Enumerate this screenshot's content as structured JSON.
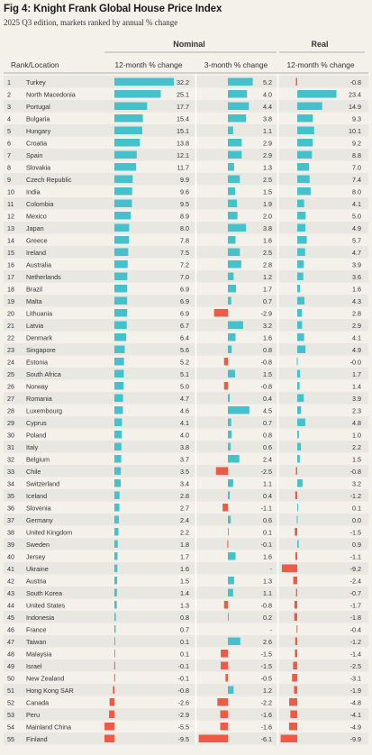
{
  "title": "Fig 4: Knight Frank Global House Price Index",
  "subtitle": "2025 Q3 edition, markets ranked by annual % change",
  "chart_data": {
    "type": "table",
    "title": "Fig 4: Knight Frank Global House Price Index",
    "subtitle": "2025 Q3 edition, markets ranked by annual % change",
    "group_headers": [
      "Nominal",
      "Real"
    ],
    "column_headers": [
      "Rank/Location",
      "12-month % change",
      "3-month % change",
      "12-month % change"
    ],
    "colors": {
      "positive": "#45c1cc",
      "negative": "#ee5a45",
      "background": "#f4f1eb",
      "stripe": "#e9e7e1"
    },
    "series": [
      {
        "name": "Nominal 12-month % change",
        "key": "nominal_12m"
      },
      {
        "name": "Nominal 3-month % change",
        "key": "nominal_3m"
      },
      {
        "name": "Real 12-month % change",
        "key": "real_12m"
      }
    ],
    "rows": [
      {
        "rank": "1",
        "location": "Turkey",
        "nominal_12m": "32.2",
        "nominal_3m": "5.2",
        "real_12m": "-0.8"
      },
      {
        "rank": "2",
        "location": "North Macedonia",
        "nominal_12m": "25.1",
        "nominal_3m": "4.0",
        "real_12m": "23.4"
      },
      {
        "rank": "3",
        "location": "Portugal",
        "nominal_12m": "17.7",
        "nominal_3m": "4.4",
        "real_12m": "14.9"
      },
      {
        "rank": "4",
        "location": "Bulgaria",
        "nominal_12m": "15.4",
        "nominal_3m": "3.8",
        "real_12m": "9.3"
      },
      {
        "rank": "5",
        "location": "Hungary",
        "nominal_12m": "15.1",
        "nominal_3m": "1.1",
        "real_12m": "10.1"
      },
      {
        "rank": "6",
        "location": "Croatia",
        "nominal_12m": "13.8",
        "nominal_3m": "2.9",
        "real_12m": "9.2"
      },
      {
        "rank": "7",
        "location": "Spain",
        "nominal_12m": "12.1",
        "nominal_3m": "2.9",
        "real_12m": "8.8"
      },
      {
        "rank": "8",
        "location": "Slovakia",
        "nominal_12m": "11.7",
        "nominal_3m": "1.3",
        "real_12m": "7.0"
      },
      {
        "rank": "9",
        "location": "Czech Republic",
        "nominal_12m": "9.9",
        "nominal_3m": "2.5",
        "real_12m": "7.4"
      },
      {
        "rank": "10",
        "location": "India",
        "nominal_12m": "9.6",
        "nominal_3m": "1.5",
        "real_12m": "8.0"
      },
      {
        "rank": "11",
        "location": "Colombia",
        "nominal_12m": "9.5",
        "nominal_3m": "1.9",
        "real_12m": "4.1"
      },
      {
        "rank": "12",
        "location": "Mexico",
        "nominal_12m": "8.9",
        "nominal_3m": "2.0",
        "real_12m": "5.0"
      },
      {
        "rank": "13",
        "location": "Japan",
        "nominal_12m": "8.0",
        "nominal_3m": "3.8",
        "real_12m": "4.9"
      },
      {
        "rank": "14",
        "location": "Greece",
        "nominal_12m": "7.8",
        "nominal_3m": "1.6",
        "real_12m": "5.7"
      },
      {
        "rank": "15",
        "location": "Ireland",
        "nominal_12m": "7.5",
        "nominal_3m": "2.5",
        "real_12m": "4.7"
      },
      {
        "rank": "16",
        "location": "Australia",
        "nominal_12m": "7.2",
        "nominal_3m": "2.8",
        "real_12m": "3.9"
      },
      {
        "rank": "17",
        "location": "Netherlands",
        "nominal_12m": "7.0",
        "nominal_3m": "1.2",
        "real_12m": "3.6"
      },
      {
        "rank": "18",
        "location": "Brazil",
        "nominal_12m": "6.9",
        "nominal_3m": "1.7",
        "real_12m": "1.6"
      },
      {
        "rank": "19",
        "location": "Malta",
        "nominal_12m": "6.9",
        "nominal_3m": "0.7",
        "real_12m": "4.3"
      },
      {
        "rank": "20",
        "location": "Lithuania",
        "nominal_12m": "6.9",
        "nominal_3m": "-2.9",
        "real_12m": "2.8"
      },
      {
        "rank": "21",
        "location": "Latvia",
        "nominal_12m": "6.7",
        "nominal_3m": "3.2",
        "real_12m": "2.9"
      },
      {
        "rank": "22",
        "location": "Denmark",
        "nominal_12m": "6.4",
        "nominal_3m": "1.6",
        "real_12m": "4.1"
      },
      {
        "rank": "23",
        "location": "Singapore",
        "nominal_12m": "5.6",
        "nominal_3m": "0.8",
        "real_12m": "4.9"
      },
      {
        "rank": "24",
        "location": "Estonia",
        "nominal_12m": "5.2",
        "nominal_3m": "-0.8",
        "real_12m": "-0.0"
      },
      {
        "rank": "25",
        "location": "South Africa",
        "nominal_12m": "5.1",
        "nominal_3m": "1.5",
        "real_12m": "1.7"
      },
      {
        "rank": "26",
        "location": "Norway",
        "nominal_12m": "5.0",
        "nominal_3m": "-0.8",
        "real_12m": "1.4"
      },
      {
        "rank": "27",
        "location": "Romania",
        "nominal_12m": "4.7",
        "nominal_3m": "0.4",
        "real_12m": "3.9"
      },
      {
        "rank": "28",
        "location": "Luxembourg",
        "nominal_12m": "4.6",
        "nominal_3m": "4.5",
        "real_12m": "2.3"
      },
      {
        "rank": "29",
        "location": "Cyprus",
        "nominal_12m": "4.1",
        "nominal_3m": "0.7",
        "real_12m": "4.8"
      },
      {
        "rank": "30",
        "location": "Poland",
        "nominal_12m": "4.0",
        "nominal_3m": "0.8",
        "real_12m": "1.0"
      },
      {
        "rank": "31",
        "location": "Italy",
        "nominal_12m": "3.8",
        "nominal_3m": "0.6",
        "real_12m": "2.2"
      },
      {
        "rank": "32",
        "location": "Belgium",
        "nominal_12m": "3.7",
        "nominal_3m": "2.4",
        "real_12m": "1.5"
      },
      {
        "rank": "33",
        "location": "Chile",
        "nominal_12m": "3.5",
        "nominal_3m": "-2.5",
        "real_12m": "-0.8"
      },
      {
        "rank": "34",
        "location": "Switzerland",
        "nominal_12m": "3.4",
        "nominal_3m": "1.1",
        "real_12m": "3.2"
      },
      {
        "rank": "35",
        "location": "Iceland",
        "nominal_12m": "2.8",
        "nominal_3m": "0.4",
        "real_12m": "-1.2"
      },
      {
        "rank": "36",
        "location": "Slovenia",
        "nominal_12m": "2.7",
        "nominal_3m": "-1.1",
        "real_12m": "0.1"
      },
      {
        "rank": "37",
        "location": "Germany",
        "nominal_12m": "2.4",
        "nominal_3m": "0.6",
        "real_12m": "0.0"
      },
      {
        "rank": "38",
        "location": "United Kingdom",
        "nominal_12m": "2.2",
        "nominal_3m": "0.1",
        "real_12m": "-1.5"
      },
      {
        "rank": "39",
        "location": "Sweden",
        "nominal_12m": "1.8",
        "nominal_3m": "-0.1",
        "real_12m": "0.9"
      },
      {
        "rank": "40",
        "location": "Jersey",
        "nominal_12m": "1.7",
        "nominal_3m": "1.6",
        "real_12m": "-1.1"
      },
      {
        "rank": "41",
        "location": "Ukraine",
        "nominal_12m": "1.6",
        "nominal_3m": "-",
        "real_12m": "-9.2"
      },
      {
        "rank": "42",
        "location": "Austria",
        "nominal_12m": "1.5",
        "nominal_3m": "1.3",
        "real_12m": "-2.4"
      },
      {
        "rank": "43",
        "location": "South Korea",
        "nominal_12m": "1.4",
        "nominal_3m": "1.1",
        "real_12m": "-0.7"
      },
      {
        "rank": "44",
        "location": "United States",
        "nominal_12m": "1.3",
        "nominal_3m": "-0.8",
        "real_12m": "-1.7"
      },
      {
        "rank": "45",
        "location": "Indonesia",
        "nominal_12m": "0.8",
        "nominal_3m": "0.2",
        "real_12m": "-1.8"
      },
      {
        "rank": "46",
        "location": "France",
        "nominal_12m": "0.7",
        "nominal_3m": "-",
        "real_12m": "-0.4"
      },
      {
        "rank": "47",
        "location": "Taiwan",
        "nominal_12m": "0.1",
        "nominal_3m": "2.6",
        "real_12m": "-1.2"
      },
      {
        "rank": "48",
        "location": "Malaysia",
        "nominal_12m": "0.1",
        "nominal_3m": "-1.5",
        "real_12m": "-1.4"
      },
      {
        "rank": "49",
        "location": "Israel",
        "nominal_12m": "-0.1",
        "nominal_3m": "-1.5",
        "real_12m": "-2.5"
      },
      {
        "rank": "50",
        "location": "New Zealand",
        "nominal_12m": "-0.1",
        "nominal_3m": "-0.5",
        "real_12m": "-3.1"
      },
      {
        "rank": "51",
        "location": "Hong Kong SAR",
        "nominal_12m": "-0.8",
        "nominal_3m": "1.2",
        "real_12m": "-1.9"
      },
      {
        "rank": "52",
        "location": "Canada",
        "nominal_12m": "-2.6",
        "nominal_3m": "-2.2",
        "real_12m": "-4.8"
      },
      {
        "rank": "53",
        "location": "Peru",
        "nominal_12m": "-2.9",
        "nominal_3m": "-1.6",
        "real_12m": "-4.1"
      },
      {
        "rank": "54",
        "location": "Mainland China",
        "nominal_12m": "-5.5",
        "nominal_3m": "-1.6",
        "real_12m": "-4.9"
      },
      {
        "rank": "55",
        "location": "Finland",
        "nominal_12m": "-9.5",
        "nominal_3m": "-6.1",
        "real_12m": "-9.9"
      }
    ]
  }
}
